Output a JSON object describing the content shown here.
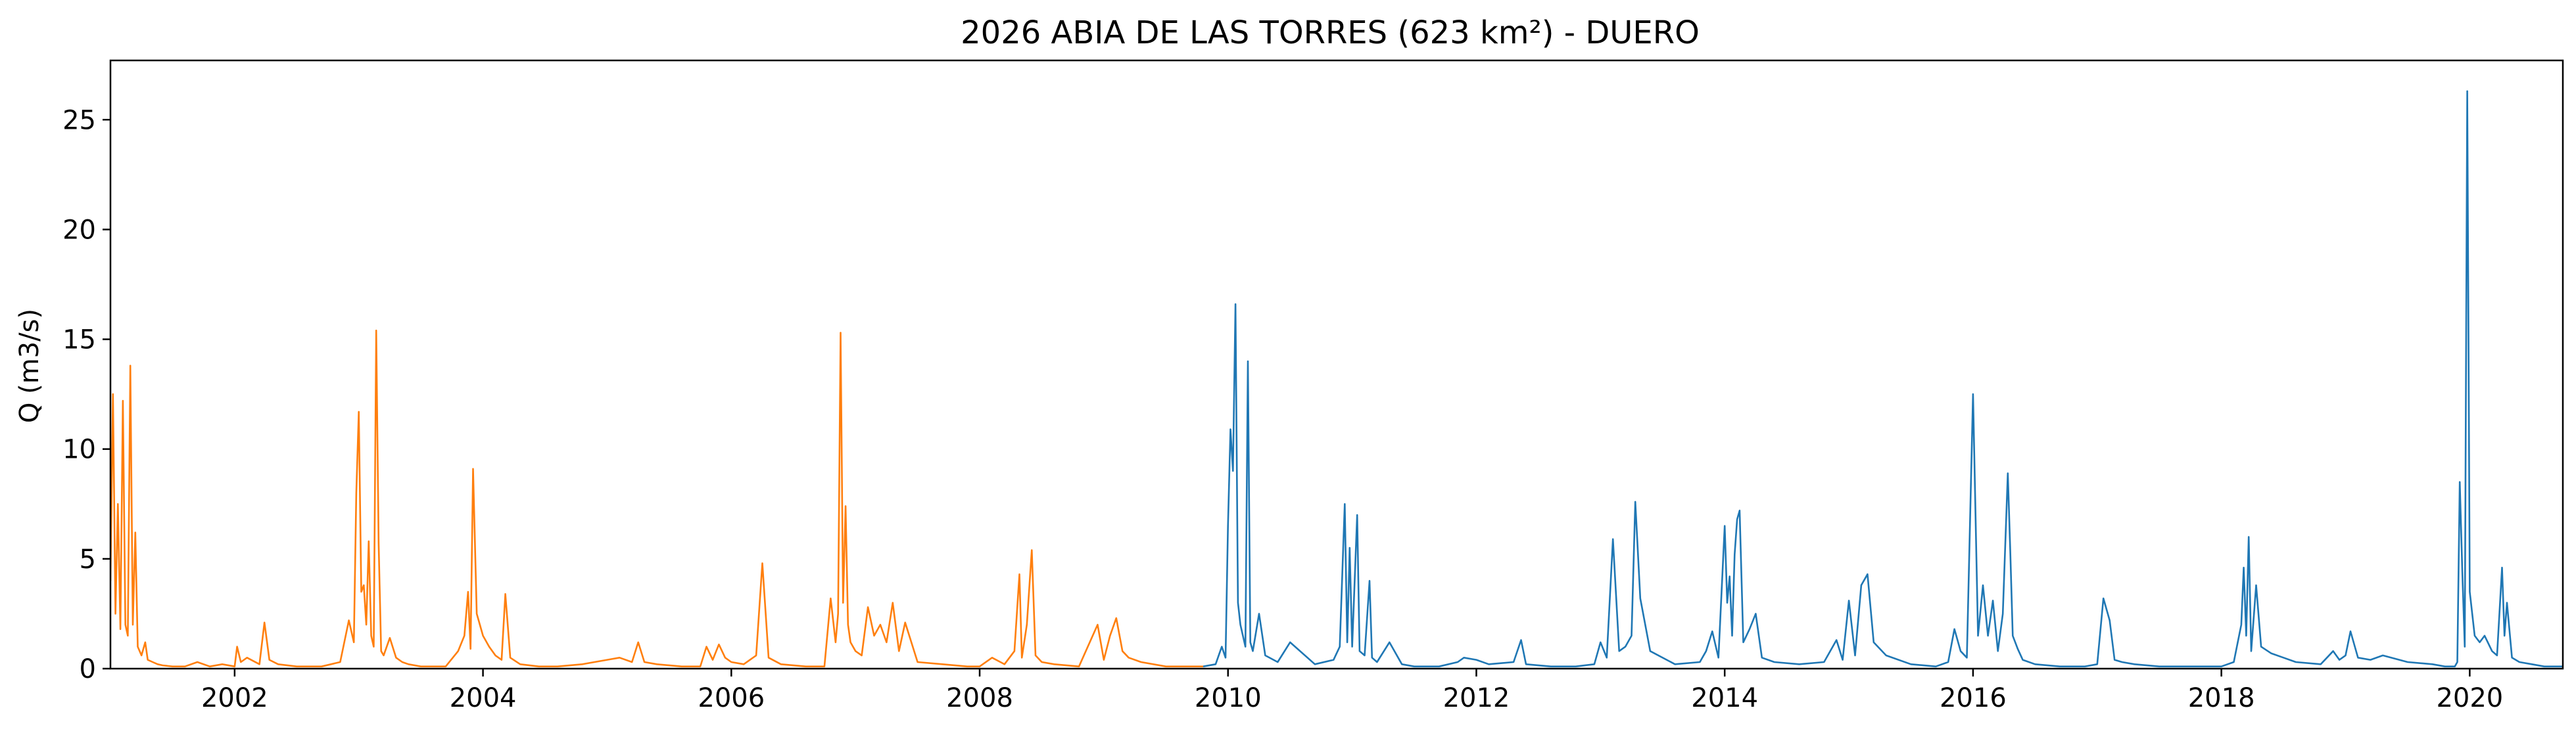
{
  "chart_data": {
    "type": "line",
    "title": "2026 ABIA DE LAS TORRES (623 km²) - DUERO",
    "xlabel": "",
    "ylabel": "Q (m3/s)",
    "xlim": [
      2001.0,
      2020.75
    ],
    "ylim": [
      0,
      27.7
    ],
    "x_ticks": [
      2002,
      2004,
      2006,
      2008,
      2010,
      2012,
      2014,
      2016,
      2018,
      2020
    ],
    "x_tick_labels": [
      "2002",
      "2004",
      "2006",
      "2008",
      "2010",
      "2012",
      "2014",
      "2016",
      "2018",
      "2020"
    ],
    "y_ticks": [
      0,
      5,
      10,
      15,
      20,
      25
    ],
    "y_tick_labels": [
      "0",
      "5",
      "10",
      "15",
      "20",
      "25"
    ],
    "grid": false,
    "legend": null,
    "series": [
      {
        "color": "#ff7f0e",
        "x": [
          2001.0,
          2001.02,
          2001.04,
          2001.06,
          2001.08,
          2001.1,
          2001.12,
          2001.14,
          2001.16,
          2001.18,
          2001.2,
          2001.22,
          2001.25,
          2001.28,
          2001.3,
          2001.34,
          2001.38,
          2001.42,
          2001.5,
          2001.6,
          2001.7,
          2001.8,
          2001.9,
          2002.0,
          2002.02,
          2002.05,
          2002.1,
          2002.2,
          2002.24,
          2002.28,
          2002.35,
          2002.5,
          2002.7,
          2002.85,
          2002.92,
          2002.96,
          2002.98,
          2003.0,
          2003.02,
          2003.04,
          2003.06,
          2003.08,
          2003.1,
          2003.12,
          2003.14,
          2003.16,
          2003.18,
          2003.2,
          2003.25,
          2003.3,
          2003.35,
          2003.4,
          2003.5,
          2003.7,
          2003.8,
          2003.85,
          2003.88,
          2003.9,
          2003.92,
          2003.95,
          2004.0,
          2004.05,
          2004.1,
          2004.15,
          2004.18,
          2004.22,
          2004.3,
          2004.45,
          2004.6,
          2004.8,
          2005.0,
          2005.1,
          2005.2,
          2005.25,
          2005.3,
          2005.4,
          2005.6,
          2005.75,
          2005.8,
          2005.85,
          2005.9,
          2005.95,
          2006.0,
          2006.1,
          2006.2,
          2006.25,
          2006.3,
          2006.4,
          2006.6,
          2006.75,
          2006.8,
          2006.84,
          2006.86,
          2006.88,
          2006.9,
          2006.92,
          2006.94,
          2006.96,
          2007.0,
          2007.05,
          2007.1,
          2007.15,
          2007.2,
          2007.25,
          2007.3,
          2007.35,
          2007.4,
          2007.5,
          2007.7,
          2007.9,
          2008.0,
          2008.1,
          2008.2,
          2008.28,
          2008.32,
          2008.34,
          2008.38,
          2008.42,
          2008.45,
          2008.5,
          2008.6,
          2008.8,
          2008.95,
          2009.0,
          2009.05,
          2009.1,
          2009.15,
          2009.2,
          2009.3,
          2009.5,
          2009.7,
          2009.8
        ],
        "values": [
          4.0,
          12.5,
          2.5,
          7.5,
          1.8,
          12.2,
          2.0,
          1.5,
          13.8,
          2.0,
          6.2,
          1.0,
          0.6,
          1.2,
          0.4,
          0.3,
          0.2,
          0.15,
          0.1,
          0.1,
          0.3,
          0.1,
          0.2,
          0.1,
          1.0,
          0.3,
          0.5,
          0.2,
          2.1,
          0.4,
          0.2,
          0.1,
          0.1,
          0.3,
          2.2,
          1.2,
          8.0,
          11.7,
          3.5,
          3.8,
          2.0,
          5.8,
          1.5,
          1.0,
          15.4,
          5.7,
          0.8,
          0.6,
          1.4,
          0.5,
          0.3,
          0.2,
          0.1,
          0.1,
          0.8,
          1.5,
          3.5,
          0.9,
          9.1,
          2.5,
          1.5,
          1.0,
          0.6,
          0.4,
          3.4,
          0.5,
          0.2,
          0.1,
          0.1,
          0.2,
          0.4,
          0.5,
          0.3,
          1.2,
          0.3,
          0.2,
          0.1,
          0.1,
          1.0,
          0.4,
          1.1,
          0.5,
          0.3,
          0.2,
          0.6,
          4.8,
          0.5,
          0.2,
          0.1,
          0.1,
          3.2,
          1.2,
          2.5,
          15.3,
          3.0,
          7.4,
          2.0,
          1.2,
          0.8,
          0.6,
          2.8,
          1.5,
          2.0,
          1.2,
          3.0,
          0.8,
          2.1,
          0.3,
          0.2,
          0.1,
          0.1,
          0.5,
          0.2,
          0.8,
          4.3,
          0.5,
          2.0,
          5.4,
          0.6,
          0.3,
          0.2,
          0.1,
          2.0,
          0.4,
          1.5,
          2.3,
          0.8,
          0.5,
          0.3,
          0.1,
          0.1,
          0.1
        ]
      },
      {
        "color": "#1f77b4",
        "x": [
          2009.8,
          2009.9,
          2009.95,
          2009.98,
          2010.0,
          2010.02,
          2010.04,
          2010.06,
          2010.08,
          2010.1,
          2010.12,
          2010.14,
          2010.16,
          2010.18,
          2010.2,
          2010.25,
          2010.3,
          2010.4,
          2010.5,
          2010.7,
          2010.85,
          2010.9,
          2010.94,
          2010.96,
          2010.98,
          2011.0,
          2011.04,
          2011.06,
          2011.1,
          2011.14,
          2011.16,
          2011.2,
          2011.3,
          2011.4,
          2011.5,
          2011.7,
          2011.85,
          2011.9,
          2012.0,
          2012.1,
          2012.3,
          2012.36,
          2012.4,
          2012.6,
          2012.8,
          2012.95,
          2013.0,
          2013.05,
          2013.1,
          2013.15,
          2013.2,
          2013.25,
          2013.28,
          2013.32,
          2013.4,
          2013.6,
          2013.8,
          2013.85,
          2013.9,
          2013.95,
          2014.0,
          2014.02,
          2014.04,
          2014.06,
          2014.08,
          2014.1,
          2014.12,
          2014.15,
          2014.2,
          2014.25,
          2014.3,
          2014.4,
          2014.6,
          2014.8,
          2014.9,
          2014.95,
          2015.0,
          2015.05,
          2015.1,
          2015.15,
          2015.2,
          2015.3,
          2015.5,
          2015.7,
          2015.8,
          2015.85,
          2015.9,
          2015.95,
          2016.0,
          2016.04,
          2016.08,
          2016.12,
          2016.16,
          2016.2,
          2016.24,
          2016.28,
          2016.3,
          2016.32,
          2016.36,
          2016.4,
          2016.5,
          2016.7,
          2016.9,
          2017.0,
          2017.05,
          2017.1,
          2017.14,
          2017.2,
          2017.3,
          2017.5,
          2017.7,
          2017.9,
          2018.0,
          2018.1,
          2018.16,
          2018.18,
          2018.2,
          2018.22,
          2018.24,
          2018.28,
          2018.32,
          2018.4,
          2018.5,
          2018.6,
          2018.8,
          2018.85,
          2018.9,
          2018.95,
          2019.0,
          2019.04,
          2019.1,
          2019.2,
          2019.3,
          2019.5,
          2019.7,
          2019.8,
          2019.85,
          2019.88,
          2019.9,
          2019.92,
          2019.94,
          2019.96,
          2019.98,
          2020.0,
          2020.04,
          2020.08,
          2020.12,
          2020.18,
          2020.22,
          2020.26,
          2020.28,
          2020.3,
          2020.34,
          2020.4,
          2020.5,
          2020.6,
          2020.7,
          2020.75
        ],
        "values": [
          0.1,
          0.2,
          1.0,
          0.5,
          6.5,
          10.9,
          9.0,
          16.6,
          3.0,
          2.0,
          1.5,
          1.0,
          14.0,
          1.2,
          0.8,
          2.5,
          0.6,
          0.3,
          1.2,
          0.2,
          0.4,
          1.0,
          7.5,
          1.2,
          5.5,
          1.0,
          7.0,
          0.8,
          0.6,
          4.0,
          0.5,
          0.3,
          1.2,
          0.2,
          0.1,
          0.1,
          0.3,
          0.5,
          0.4,
          0.2,
          0.3,
          1.3,
          0.2,
          0.1,
          0.1,
          0.2,
          1.2,
          0.5,
          5.9,
          0.8,
          1.0,
          1.5,
          7.6,
          3.2,
          0.8,
          0.2,
          0.3,
          0.8,
          1.7,
          0.5,
          6.5,
          3.0,
          4.2,
          1.5,
          5.2,
          6.8,
          7.2,
          1.2,
          1.8,
          2.5,
          0.5,
          0.3,
          0.2,
          0.3,
          1.3,
          0.4,
          3.1,
          0.6,
          3.8,
          4.3,
          1.2,
          0.6,
          0.2,
          0.1,
          0.3,
          1.8,
          0.8,
          0.5,
          12.5,
          1.5,
          3.8,
          1.5,
          3.1,
          0.8,
          2.5,
          8.9,
          5.3,
          1.5,
          0.9,
          0.4,
          0.2,
          0.1,
          0.1,
          0.2,
          3.2,
          2.2,
          0.4,
          0.3,
          0.2,
          0.1,
          0.1,
          0.1,
          0.1,
          0.3,
          2.0,
          4.6,
          1.5,
          6.0,
          0.8,
          3.8,
          1.0,
          0.7,
          0.5,
          0.3,
          0.2,
          0.5,
          0.8,
          0.4,
          0.6,
          1.7,
          0.5,
          0.4,
          0.6,
          0.3,
          0.2,
          0.1,
          0.1,
          0.1,
          0.3,
          8.5,
          4.5,
          1.0,
          26.3,
          3.5,
          1.5,
          1.2,
          1.5,
          0.8,
          0.6,
          4.6,
          1.5,
          3.0,
          0.5,
          0.3,
          0.2,
          0.1,
          0.1,
          0.1
        ]
      }
    ]
  }
}
